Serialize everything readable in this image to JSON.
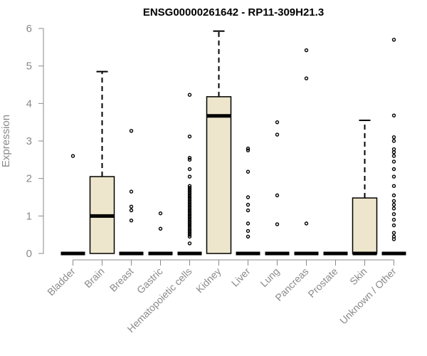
{
  "chart_data": {
    "type": "box",
    "title": "ENSG00000261642 - RP11-309H21.3",
    "ylabel": "Expression",
    "xlabel": "",
    "ylim": [
      0,
      6
    ],
    "yticks": [
      "0",
      "1",
      "2",
      "3",
      "4",
      "5",
      "6"
    ],
    "box_fill": "#ede6cc",
    "categories": [
      "Bladder",
      "Brain",
      "Breast",
      "Gastric",
      "Hematopoietic cells",
      "Kidney",
      "Liver",
      "Lung",
      "Pancreas",
      "Prostate",
      "Skin",
      "Unknown / Other"
    ],
    "boxes": [
      {
        "q1": 0,
        "median": 0,
        "q3": 0,
        "whisker_low": 0,
        "whisker_high": 0,
        "outliers": [
          2.6
        ]
      },
      {
        "q1": 0,
        "median": 1.0,
        "q3": 2.05,
        "whisker_low": 0,
        "whisker_high": 4.85,
        "outliers": []
      },
      {
        "q1": 0,
        "median": 0,
        "q3": 0,
        "whisker_low": 0,
        "whisker_high": 0,
        "outliers": [
          0.88,
          1.15,
          1.25,
          1.65,
          3.27
        ]
      },
      {
        "q1": 0,
        "median": 0,
        "q3": 0,
        "whisker_low": 0,
        "whisker_high": 0,
        "outliers": [
          0.66,
          1.07
        ]
      },
      {
        "q1": 0,
        "median": 0,
        "q3": 0,
        "whisker_low": 0,
        "whisker_high": 0,
        "outliers": [
          0.27,
          0.45,
          0.5,
          0.55,
          0.6,
          0.65,
          0.7,
          0.75,
          0.8,
          0.85,
          0.9,
          0.95,
          1.0,
          1.05,
          1.1,
          1.15,
          1.2,
          1.25,
          1.3,
          1.35,
          1.4,
          1.45,
          1.5,
          1.55,
          1.6,
          1.65,
          1.7,
          1.75,
          1.8,
          2.05,
          2.25,
          2.5,
          2.55,
          3.12,
          4.23
        ]
      },
      {
        "q1": 0,
        "median": 3.67,
        "q3": 4.18,
        "whisker_low": 0,
        "whisker_high": 5.93,
        "outliers": []
      },
      {
        "q1": 0,
        "median": 0,
        "q3": 0,
        "whisker_low": 0,
        "whisker_high": 0,
        "outliers": [
          0.45,
          0.6,
          0.8,
          1.15,
          1.3,
          1.5,
          2.18,
          2.75,
          2.8
        ]
      },
      {
        "q1": 0,
        "median": 0,
        "q3": 0,
        "whisker_low": 0,
        "whisker_high": 0,
        "outliers": [
          0.78,
          1.55,
          3.17,
          3.5
        ]
      },
      {
        "q1": 0,
        "median": 0,
        "q3": 0,
        "whisker_low": 0,
        "whisker_high": 0,
        "outliers": [
          0.8,
          4.67,
          5.42
        ]
      },
      {
        "q1": 0,
        "median": 0,
        "q3": 0,
        "whisker_low": 0,
        "whisker_high": 0,
        "outliers": []
      },
      {
        "q1": 0,
        "median": 0,
        "q3": 1.48,
        "whisker_low": 0,
        "whisker_high": 3.55,
        "outliers": []
      },
      {
        "q1": 0,
        "median": 0,
        "q3": 0,
        "whisker_low": 0,
        "whisker_high": 0,
        "outliers": [
          0.38,
          0.45,
          0.55,
          0.75,
          0.9,
          1.05,
          1.2,
          1.3,
          1.4,
          1.55,
          1.8,
          2.05,
          2.25,
          2.45,
          2.6,
          2.7,
          2.78,
          3.0,
          3.1,
          3.68,
          5.7
        ]
      }
    ]
  }
}
